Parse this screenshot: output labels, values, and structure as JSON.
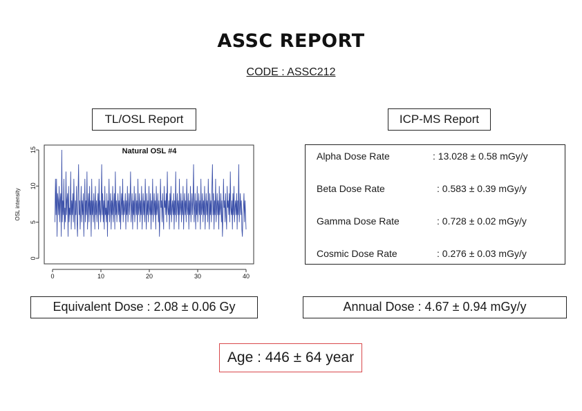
{
  "report": {
    "title": "ASSC REPORT",
    "code": "CODE : ASSC212"
  },
  "tl_osl": {
    "label": "TL/OSL Report",
    "equivalent_dose": "Equivalent Dose : 2.08 ± 0.06 Gy"
  },
  "icp_ms": {
    "label": "ICP-MS Report",
    "rows": [
      {
        "name": "Alpha Dose Rate",
        "value": ": 13.028 ± 0.58 mGy/y"
      },
      {
        "name": "Beta Dose Rate",
        "value": ": 0.583 ± 0.39 mGy/y"
      },
      {
        "name": "Gamma Dose Rate",
        "value": ": 0.728 ± 0.02 mGy/y"
      },
      {
        "name": "Cosmic Dose Rate",
        "value": ": 0.276 ± 0.03 mGy/y"
      }
    ],
    "annual_dose": "Annual Dose : 4.67 ± 0.94 mGy/y"
  },
  "age": "Age : 446 ± 64 year",
  "colors": {
    "series": "#3a4fa8",
    "age_border": "#d8474a"
  },
  "chart_data": {
    "type": "line",
    "title": "Natural OSL #4",
    "xlabel": "",
    "ylabel": "OSL intensity",
    "xlim": [
      0,
      40
    ],
    "ylim": [
      0,
      15
    ],
    "x_ticks": [
      0,
      10,
      20,
      30,
      40
    ],
    "y_ticks": [
      0,
      5,
      10,
      15
    ],
    "grid": false,
    "series": [
      {
        "values": [
          5,
          11,
          6,
          11,
          3,
          9,
          8,
          6,
          10,
          5,
          8,
          9,
          3,
          15,
          5,
          8,
          6,
          11,
          4,
          7,
          5,
          12,
          6,
          8,
          9,
          3,
          10,
          5,
          7,
          6,
          12,
          4,
          8,
          6,
          9,
          5,
          11,
          7,
          4,
          8,
          6,
          10,
          5,
          3,
          9,
          13,
          6,
          8,
          4,
          7,
          10,
          5,
          8,
          6,
          9,
          3,
          7,
          11,
          5,
          8,
          6,
          12,
          4,
          7,
          9,
          5,
          10,
          6,
          8,
          3,
          11,
          6,
          8,
          5,
          9,
          7,
          4,
          10,
          6,
          8,
          5,
          7,
          9,
          4,
          11,
          6,
          8,
          5,
          7,
          13,
          6,
          9,
          5,
          8,
          4,
          10,
          6,
          7,
          5,
          9,
          3,
          8,
          6,
          11,
          5,
          7,
          9,
          4,
          8,
          6,
          10,
          5,
          7,
          9,
          4,
          12,
          6,
          8,
          5,
          7,
          9,
          6,
          8,
          5,
          10,
          4,
          7,
          9,
          6,
          11,
          5,
          8,
          6,
          7,
          9,
          4,
          8,
          6,
          10,
          5,
          7,
          9,
          6,
          8,
          12,
          5,
          7,
          9,
          4,
          8,
          6,
          10,
          5,
          7,
          9,
          6,
          8,
          4,
          11,
          6,
          7,
          9,
          5,
          8,
          6,
          10,
          4,
          7,
          9,
          6,
          8,
          5,
          11,
          7,
          4,
          9,
          6,
          8,
          5,
          10,
          7,
          6,
          9,
          4,
          8,
          6,
          11,
          5,
          7,
          9,
          6,
          8,
          4,
          10,
          6,
          7,
          9,
          5,
          8,
          3,
          6,
          11,
          7,
          8,
          5,
          9,
          6,
          4,
          10,
          7,
          8,
          6,
          9,
          5,
          12,
          7,
          6,
          8,
          4,
          9,
          6,
          10,
          5,
          7,
          8,
          6,
          9,
          4,
          8,
          6,
          12,
          5,
          7,
          9,
          6,
          8,
          4,
          11,
          6,
          7,
          9,
          5,
          8,
          6,
          10,
          4,
          7,
          9,
          6,
          8,
          5,
          11,
          7,
          6,
          9,
          4,
          8,
          6,
          10,
          5,
          7,
          9,
          6,
          8,
          13,
          5,
          7,
          9,
          4,
          8,
          6,
          10,
          5,
          7,
          9,
          6,
          8,
          4,
          11,
          6,
          7,
          9,
          5,
          8,
          6,
          10,
          4,
          7,
          9,
          6,
          8,
          5,
          11,
          7,
          4,
          9,
          6,
          8,
          5,
          10,
          13,
          6,
          9,
          4,
          8,
          6,
          11,
          5,
          7,
          9,
          6,
          8,
          4,
          10,
          6,
          7,
          9,
          5,
          8,
          3,
          6,
          11,
          7,
          8,
          5,
          9,
          6,
          4,
          10,
          7,
          8,
          6,
          9,
          5,
          12,
          7,
          6,
          8,
          4,
          9,
          6,
          10,
          5,
          7,
          8,
          6,
          9,
          4,
          8,
          6,
          13,
          5,
          7,
          9,
          6,
          8,
          4,
          3,
          6,
          7,
          9,
          5,
          8,
          6,
          4
        ]
      }
    ]
  }
}
